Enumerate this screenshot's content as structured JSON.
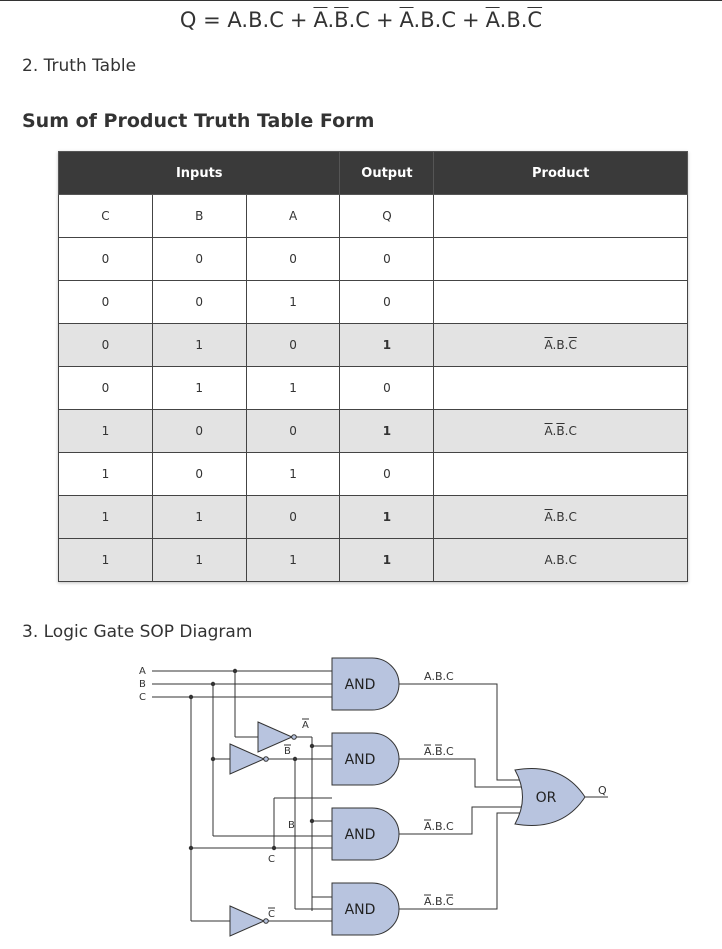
{
  "equation": {
    "lhs": "Q = ",
    "terms": [
      [
        {
          "t": "A",
          "ov": false
        },
        {
          "t": ".",
          "ov": false
        },
        {
          "t": "B",
          "ov": false
        },
        {
          "t": ".",
          "ov": false
        },
        {
          "t": "C",
          "ov": false
        }
      ],
      [
        {
          "t": "A",
          "ov": true
        },
        {
          "t": ".",
          "ov": false
        },
        {
          "t": "B",
          "ov": true
        },
        {
          "t": ".",
          "ov": false
        },
        {
          "t": "C",
          "ov": false
        }
      ],
      [
        {
          "t": "A",
          "ov": true
        },
        {
          "t": ".",
          "ov": false
        },
        {
          "t": "B",
          "ov": false
        },
        {
          "t": ".",
          "ov": false
        },
        {
          "t": "C",
          "ov": false
        }
      ],
      [
        {
          "t": "A",
          "ov": true
        },
        {
          "t": ".",
          "ov": false
        },
        {
          "t": "B",
          "ov": false
        },
        {
          "t": ".",
          "ov": false
        },
        {
          "t": "C",
          "ov": true
        }
      ]
    ],
    "plus": "+"
  },
  "section2": {
    "title": "2. Truth Table"
  },
  "sop_heading": "Sum of Product Truth Table Form",
  "table": {
    "headers": {
      "inputs": "Inputs",
      "output": "Output",
      "product": "Product"
    },
    "subheaders": [
      "C",
      "B",
      "A",
      "Q",
      ""
    ],
    "rows": [
      {
        "c": "0",
        "b": "0",
        "a": "0",
        "q": "0",
        "p": [],
        "hl": false
      },
      {
        "c": "0",
        "b": "0",
        "a": "1",
        "q": "0",
        "p": [],
        "hl": false
      },
      {
        "c": "0",
        "b": "1",
        "a": "0",
        "q": "1",
        "p": [
          {
            "t": "A",
            "ov": true
          },
          {
            "t": ".",
            "ov": false
          },
          {
            "t": "B",
            "ov": false
          },
          {
            "t": ".",
            "ov": false
          },
          {
            "t": "C",
            "ov": true
          }
        ],
        "hl": true
      },
      {
        "c": "0",
        "b": "1",
        "a": "1",
        "q": "0",
        "p": [],
        "hl": false
      },
      {
        "c": "1",
        "b": "0",
        "a": "0",
        "q": "1",
        "p": [
          {
            "t": "A",
            "ov": true
          },
          {
            "t": ".",
            "ov": false
          },
          {
            "t": "B",
            "ov": true
          },
          {
            "t": ".",
            "ov": false
          },
          {
            "t": "C",
            "ov": false
          }
        ],
        "hl": true
      },
      {
        "c": "1",
        "b": "0",
        "a": "1",
        "q": "0",
        "p": [],
        "hl": false
      },
      {
        "c": "1",
        "b": "1",
        "a": "0",
        "q": "1",
        "p": [
          {
            "t": "A",
            "ov": true
          },
          {
            "t": ".",
            "ov": false
          },
          {
            "t": "B",
            "ov": false
          },
          {
            "t": ".",
            "ov": false
          },
          {
            "t": "C",
            "ov": false
          }
        ],
        "hl": true
      },
      {
        "c": "1",
        "b": "1",
        "a": "1",
        "q": "1",
        "p": [
          {
            "t": "A",
            "ov": false
          },
          {
            "t": ".",
            "ov": false
          },
          {
            "t": "B",
            "ov": false
          },
          {
            "t": ".",
            "ov": false
          },
          {
            "t": "C",
            "ov": false
          }
        ],
        "hl": true
      }
    ]
  },
  "section3": {
    "title": "3. Logic Gate SOP Diagram"
  },
  "diagram": {
    "inputs": [
      "A",
      "B",
      "C"
    ],
    "and_label": "AND",
    "or_label": "OR",
    "output": "Q",
    "not_labels": [
      "A",
      "B",
      "C"
    ],
    "tap_labels": {
      "b": "B",
      "c": "C"
    },
    "terms": [
      [
        {
          "t": "A",
          "ov": false
        },
        {
          "t": ".",
          "ov": false
        },
        {
          "t": "B",
          "ov": false
        },
        {
          "t": ".",
          "ov": false
        },
        {
          "t": "C",
          "ov": false
        }
      ],
      [
        {
          "t": "A",
          "ov": true
        },
        {
          "t": ".",
          "ov": false
        },
        {
          "t": "B",
          "ov": true
        },
        {
          "t": ".",
          "ov": false
        },
        {
          "t": "C",
          "ov": false
        }
      ],
      [
        {
          "t": "A",
          "ov": true
        },
        {
          "t": ".",
          "ov": false
        },
        {
          "t": "B",
          "ov": false
        },
        {
          "t": ".",
          "ov": false
        },
        {
          "t": "C",
          "ov": false
        }
      ],
      [
        {
          "t": "A",
          "ov": true
        },
        {
          "t": ".",
          "ov": false
        },
        {
          "t": "B",
          "ov": false
        },
        {
          "t": ".",
          "ov": false
        },
        {
          "t": "C",
          "ov": true
        }
      ]
    ],
    "colors": {
      "gate_fill": "#b8c4df",
      "wire": "#333333",
      "label": "#333333"
    }
  }
}
